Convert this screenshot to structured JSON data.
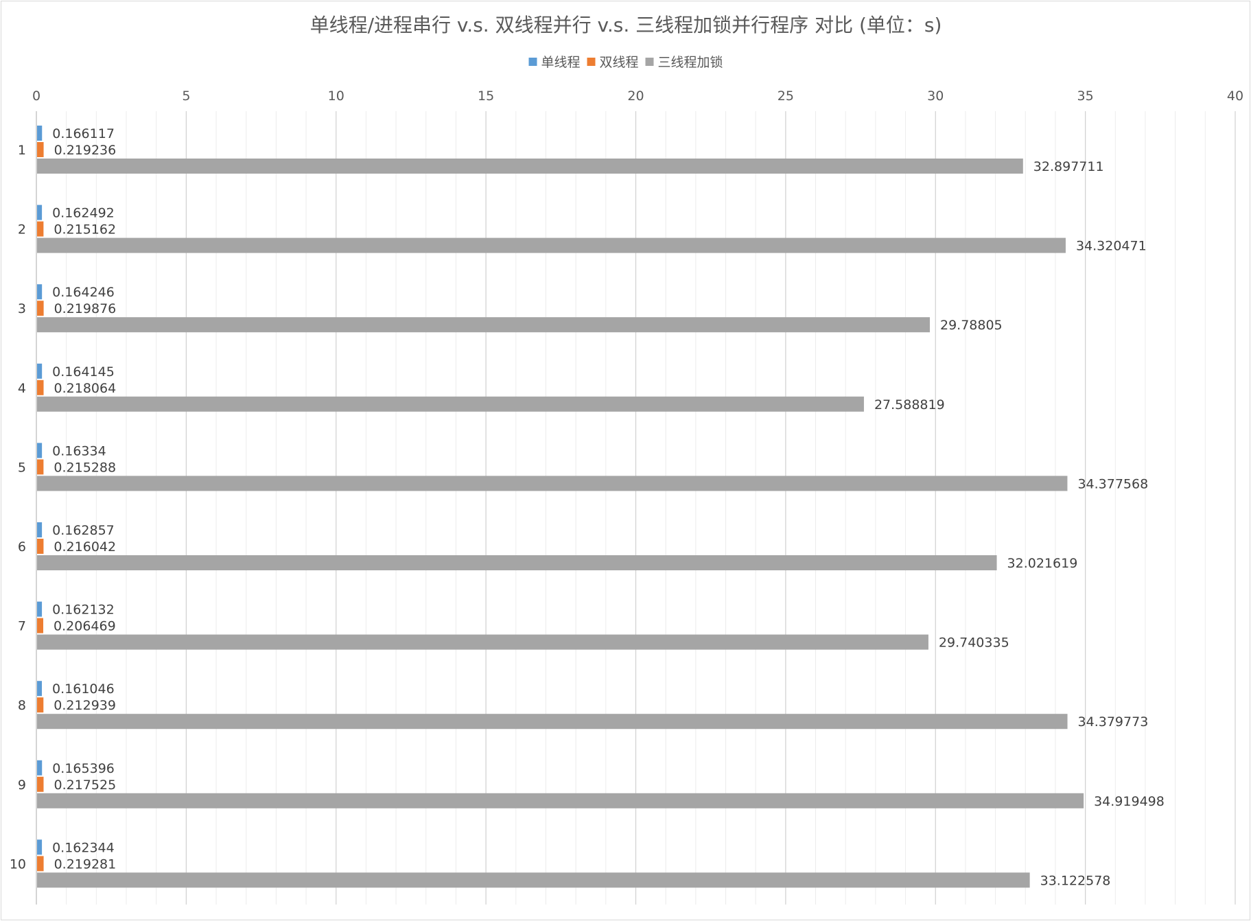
{
  "chart_data": {
    "type": "bar",
    "orientation": "horizontal",
    "title": "单线程/进程串行 v.s. 双线程并行 v.s. 三线程加锁并行程序 对比 (单位：s)",
    "xlim": [
      0,
      40
    ],
    "xticks": [
      0,
      5,
      10,
      15,
      20,
      25,
      30,
      35,
      40
    ],
    "x_axis_position": "top",
    "grid": true,
    "legend_position": "top-center",
    "categories": [
      "1",
      "2",
      "3",
      "4",
      "5",
      "6",
      "7",
      "8",
      "9",
      "10"
    ],
    "series": [
      {
        "name": "单线程",
        "color": "#5b9bd5",
        "values": [
          0.166117,
          0.162492,
          0.164246,
          0.164145,
          0.16334,
          0.162857,
          0.162132,
          0.161046,
          0.165396,
          0.162344
        ],
        "labels": [
          "0.166117",
          "0.162492",
          "0.164246",
          "0.164145",
          "0.16334",
          "0.162857",
          "0.162132",
          "0.161046",
          "0.165396",
          "0.162344"
        ]
      },
      {
        "name": "双线程",
        "color": "#ed7d31",
        "values": [
          0.219236,
          0.215162,
          0.219876,
          0.218064,
          0.215288,
          0.216042,
          0.206469,
          0.212939,
          0.217525,
          0.219281
        ],
        "labels": [
          "0.219236",
          "0.215162",
          "0.219876",
          "0.218064",
          "0.215288",
          "0.216042",
          "0.206469",
          "0.212939",
          "0.217525",
          "0.219281"
        ]
      },
      {
        "name": "三线程加锁",
        "color": "#a5a5a5",
        "values": [
          32.897711,
          34.320471,
          29.78805,
          27.588819,
          34.377568,
          32.021619,
          29.740335,
          34.379773,
          34.919498,
          33.122578
        ],
        "labels": [
          "32.897711",
          "34.320471",
          "29.78805",
          "27.588819",
          "34.377568",
          "32.021619",
          "29.740335",
          "34.379773",
          "34.919498",
          "33.122578"
        ]
      }
    ]
  }
}
